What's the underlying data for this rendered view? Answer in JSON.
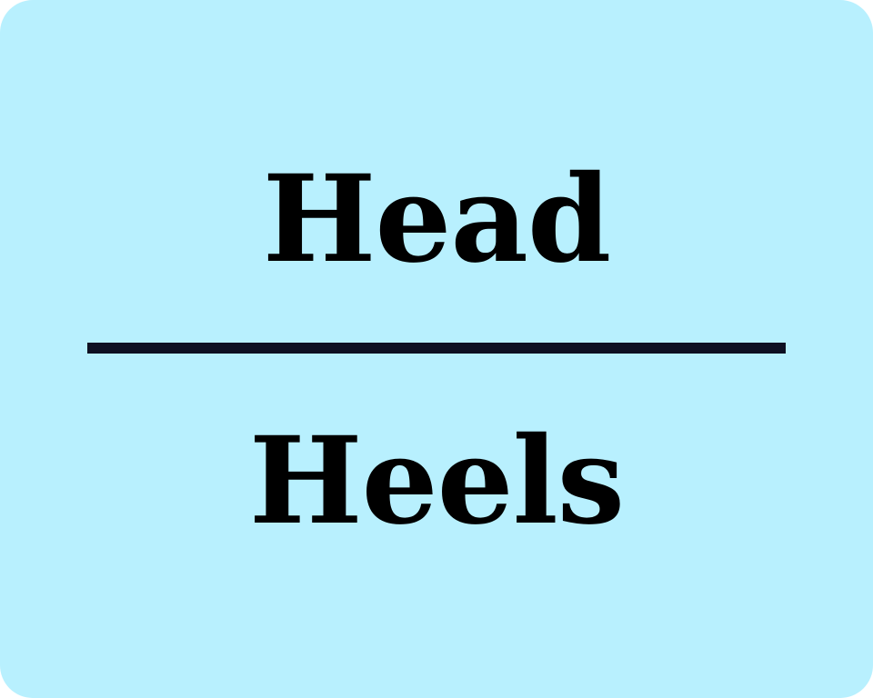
{
  "card": {
    "top_word": "Head",
    "bottom_word": "Heels"
  },
  "colors": {
    "background": "#b8f0fe",
    "text": "#000000",
    "divider": "#0e1022"
  }
}
